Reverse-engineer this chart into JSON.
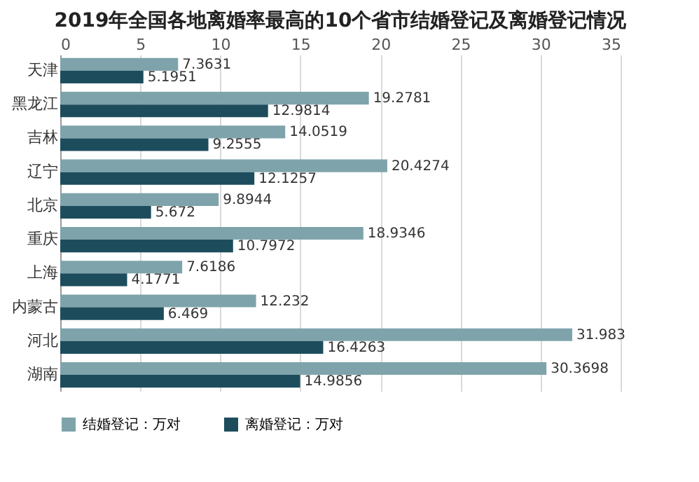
{
  "chart_data": {
    "type": "bar",
    "orientation": "horizontal",
    "title": "2019年全国各地离婚率最高的10个省市结婚登记及离婚登记情况",
    "categories": [
      "天津",
      "黑龙江",
      "吉林",
      "辽宁",
      "北京",
      "重庆",
      "上海",
      "内蒙古",
      "河北",
      "湖南"
    ],
    "series": [
      {
        "name": "结婚登记：万对",
        "color": "#7fa3ab",
        "values": [
          7.3631,
          19.2781,
          14.0519,
          20.4274,
          9.8944,
          18.9346,
          7.6186,
          12.232,
          31.983,
          30.3698
        ]
      },
      {
        "name": "离婚登记：万对",
        "color": "#1d4d5c",
        "values": [
          5.1951,
          12.9814,
          9.2555,
          12.1257,
          5.672,
          10.7972,
          4.1771,
          6.469,
          16.4263,
          14.9856
        ]
      }
    ],
    "xlim": [
      0,
      35
    ],
    "xticks": [
      0,
      5,
      10,
      15,
      20,
      25,
      30,
      35
    ],
    "grid": "x",
    "legend": "bottom",
    "data_labels": true
  }
}
